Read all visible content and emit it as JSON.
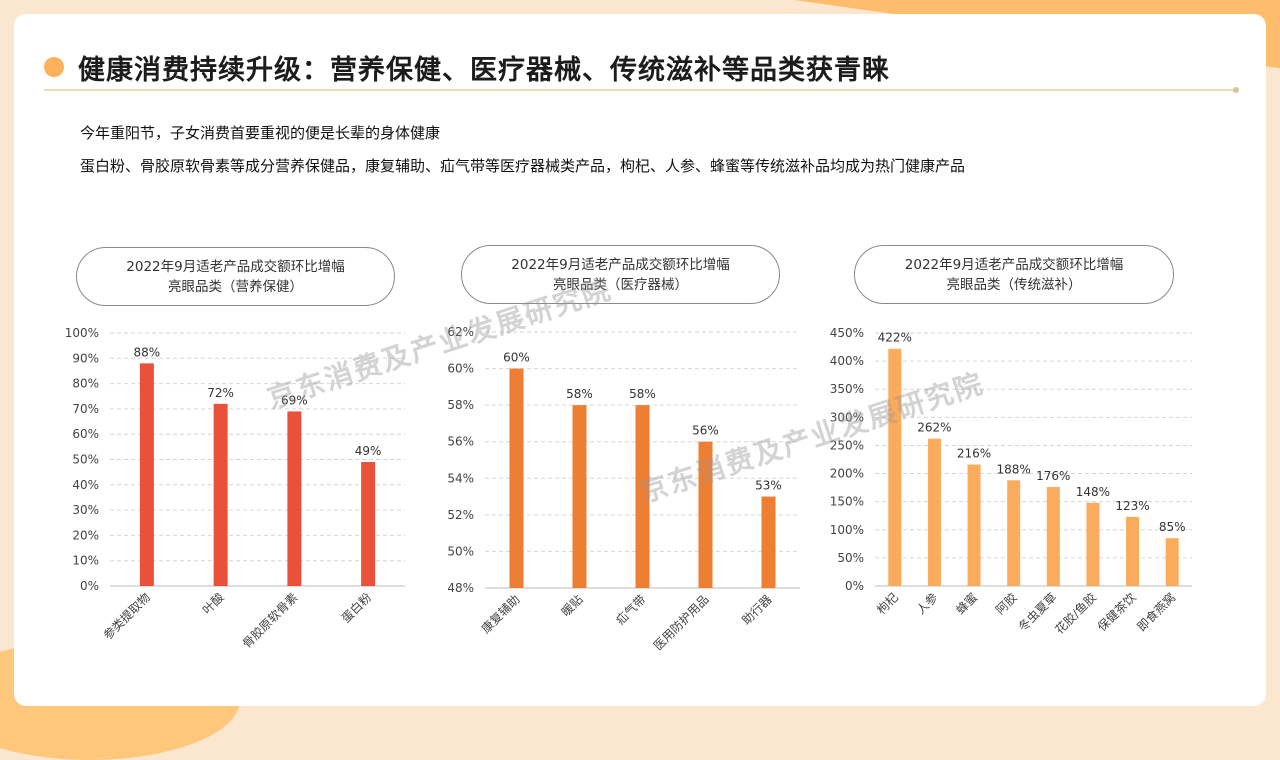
{
  "page": {
    "title": "健康消费持续升级：营养保健、医疗器械、传统滋补等品类获青睐",
    "intro_line_1": "今年重阳节，子女消费首要重视的便是长辈的身体健康",
    "intro_line_2": "蛋白粉、骨胶原软骨素等成分营养保健品，康复辅助、疝气带等医疗器械类产品，枸杞、人参、蜂蜜等传统滋补品均成为热门健康产品",
    "watermark": "京东消费及产业发展研究院"
  },
  "colors": {
    "chart_1_bar": "#e9513a",
    "chart_2_bar": "#ee7e31",
    "chart_3_bar": "#fbab5c",
    "accent_dot": "#fbb25b"
  },
  "chart_data": [
    {
      "type": "bar",
      "title_line_1": "2022年9月适老产品成交额环比增幅",
      "title_line_2": "亮眼品类（营养保健）",
      "categories": [
        "参类提取物",
        "叶酸",
        "骨胶原软骨素",
        "蛋白粉"
      ],
      "values": [
        88,
        72,
        69,
        49
      ],
      "value_labels": [
        "88%",
        "72%",
        "69%",
        "49%"
      ],
      "ylim": [
        0,
        100
      ],
      "yticks": [
        "0%",
        "10%",
        "20%",
        "30%",
        "40%",
        "50%",
        "60%",
        "70%",
        "80%",
        "90%",
        "100%"
      ],
      "grid": true
    },
    {
      "type": "bar",
      "title_line_1": "2022年9月适老产品成交额环比增幅",
      "title_line_2": "亮眼品类（医疗器械）",
      "categories": [
        "康复辅助",
        "暖贴",
        "疝气带",
        "医用防护用品",
        "助行器"
      ],
      "values": [
        60,
        58,
        58,
        56,
        53
      ],
      "value_labels": [
        "60%",
        "58%",
        "58%",
        "56%",
        "53%"
      ],
      "ylim": [
        48,
        62
      ],
      "yticks": [
        "48%",
        "50%",
        "52%",
        "54%",
        "56%",
        "58%",
        "60%",
        "62%"
      ],
      "grid": true
    },
    {
      "type": "bar",
      "title_line_1": "2022年9月适老产品成交额环比增幅",
      "title_line_2": "亮眼品类（传统滋补）",
      "categories": [
        "枸杞",
        "人参",
        "蜂蜜",
        "阿胶",
        "冬虫夏草",
        "花胶/鱼胶",
        "保健茶饮",
        "即食燕窝"
      ],
      "values": [
        422,
        262,
        216,
        188,
        176,
        148,
        123,
        85
      ],
      "value_labels": [
        "422%",
        "262%",
        "216%",
        "188%",
        "176%",
        "148%",
        "123%",
        "85%"
      ],
      "ylim": [
        0,
        450
      ],
      "yticks": [
        "0%",
        "50%",
        "100%",
        "150%",
        "200%",
        "250%",
        "300%",
        "350%",
        "400%",
        "450%"
      ],
      "grid": true
    }
  ]
}
